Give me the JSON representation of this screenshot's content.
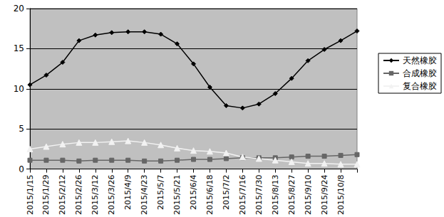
{
  "chart_data": {
    "type": "line",
    "categories": [
      "2015/1/15",
      "2015/1/29",
      "2015/2/12",
      "2015/2/26",
      "2015/3/12",
      "2015/3/26",
      "2015/4/9",
      "2015/4/23",
      "2015/5/7",
      "2015/5/21",
      "2015/6/4",
      "2015/6/18",
      "2015/7/2",
      "2015/7/16",
      "2015/7/30",
      "2015/8/13",
      "2015/8/27",
      "2015/9/10",
      "2015/9/24",
      "2015/10/8",
      null
    ],
    "series": [
      {
        "name": "天然橡胶",
        "color": "#000000",
        "marker": "diamond",
        "line_style": "solid",
        "values": [
          10.5,
          11.7,
          13.3,
          16.0,
          16.7,
          17.0,
          17.1,
          17.1,
          16.8,
          15.6,
          13.1,
          10.2,
          7.9,
          7.6,
          8.1,
          9.4,
          11.3,
          13.5,
          14.9,
          16.0,
          17.2
        ]
      },
      {
        "name": "合成橡胶",
        "color": "#666666",
        "marker": "rect",
        "line_style": "solid",
        "values": [
          1.1,
          1.1,
          1.1,
          1.0,
          1.1,
          1.1,
          1.1,
          1.0,
          1.0,
          1.1,
          1.2,
          1.2,
          1.3,
          1.4,
          1.4,
          1.4,
          1.5,
          1.6,
          1.6,
          1.7,
          1.8
        ]
      },
      {
        "name": "复合橡胶",
        "color": "#f2f2f2",
        "marker": "triangle",
        "line_style": "solid",
        "values": [
          2.5,
          2.8,
          3.1,
          3.3,
          3.3,
          3.4,
          3.5,
          3.3,
          3.0,
          2.6,
          2.3,
          2.2,
          2.0,
          1.5,
          1.3,
          1.1,
          0.9,
          0.7,
          0.7,
          0.6,
          0.6
        ]
      }
    ],
    "ylim": [
      0,
      20
    ],
    "yticks": [
      0,
      5,
      10,
      15,
      20
    ],
    "grid": true,
    "legend": "right"
  }
}
